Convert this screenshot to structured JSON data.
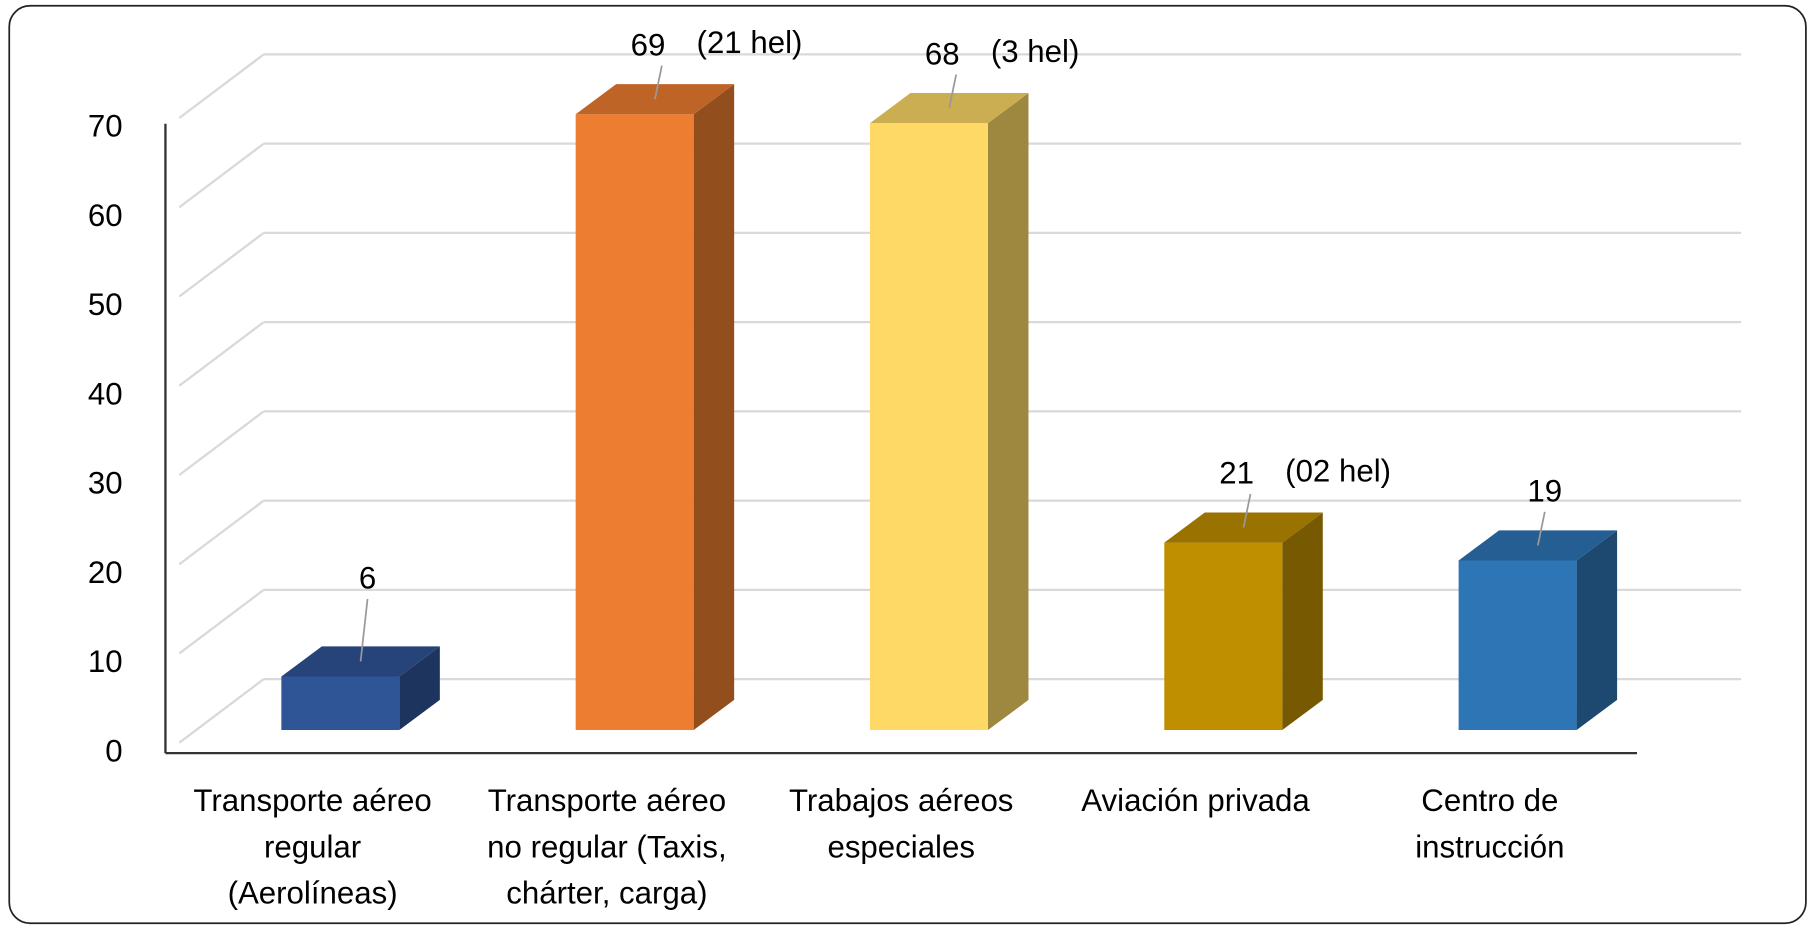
{
  "chart_data": {
    "type": "bar3d",
    "categories": [
      [
        "Transporte aéreo",
        "regular",
        "(Aerolíneas)"
      ],
      [
        "Transporte aéreo",
        "no regular (Taxis,",
        "chárter, carga)"
      ],
      [
        "Trabajos aéreos",
        "especiales"
      ],
      [
        "Aviación privada"
      ],
      [
        "Centro de",
        "instrucción"
      ]
    ],
    "values": [
      6,
      69,
      68,
      21,
      19
    ],
    "annotations": [
      null,
      "(21 hel)",
      "(3 hel)",
      "(02 hel)",
      null
    ],
    "colors": [
      "#2f5597",
      "#ed7d31",
      "#ffd966",
      "#bf8f00",
      "#2e75b6"
    ],
    "ylim": [
      0,
      70
    ],
    "yticks": [
      0,
      10,
      20,
      30,
      40,
      50,
      60,
      70
    ],
    "grid": true
  }
}
